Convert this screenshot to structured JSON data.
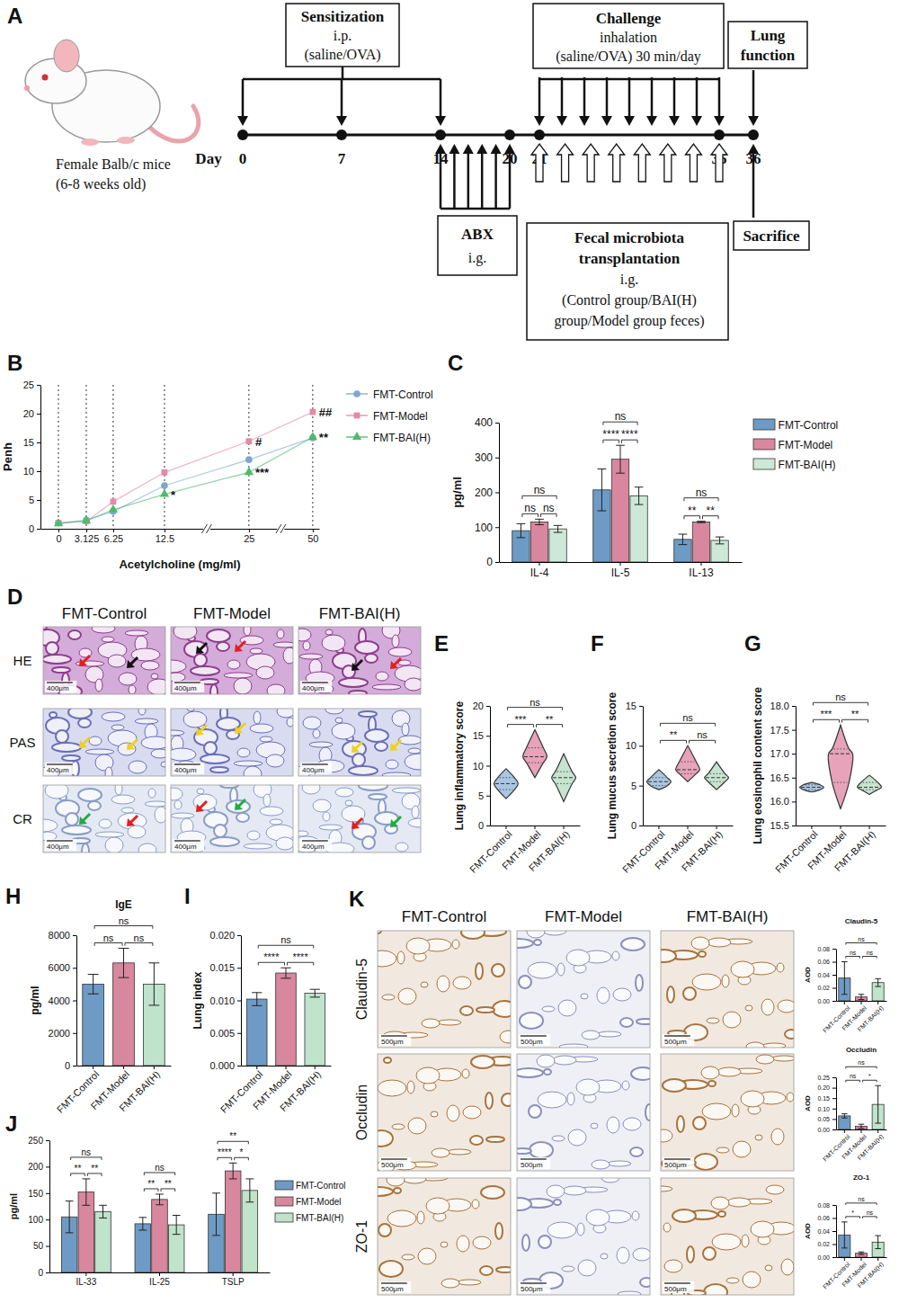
{
  "diagram": {
    "panel": "A",
    "subject": [
      "Female Balb/c mice",
      "(6-8 weeks old)"
    ],
    "day_label": "Day",
    "days": [
      0,
      7,
      14,
      20,
      21,
      35,
      36
    ],
    "sensitization": [
      "Sensitization",
      "i.p.",
      "(saline/OVA)"
    ],
    "challenge": [
      "Challenge",
      "inhalation",
      "(saline/OVA) 30 min/day"
    ],
    "lung_function": [
      "Lung",
      "function"
    ],
    "abx": [
      "ABX",
      "i.g."
    ],
    "fmt": [
      "Fecal microbiota",
      "transplantation",
      "i.g.",
      "(Control group/BAI(H)",
      "group/Model group feces)"
    ],
    "sacrifice": [
      "Sacrifice"
    ]
  },
  "image_panels": [
    {
      "panel": "D",
      "columns": [
        "FMT-Control",
        "FMT-Model",
        "FMT-BAI(H)"
      ],
      "rows": [
        "HE",
        "PAS",
        "CR"
      ],
      "scale_bar": "400μm"
    },
    {
      "panel": "K",
      "columns": [
        "FMT-Control",
        "FMT-Model",
        "FMT-BAI(H)"
      ],
      "rows": [
        "Claudin-5",
        "Occludin",
        "ZO-1"
      ],
      "scale_bar": "500μm"
    }
  ],
  "chart_data": [
    {
      "panel": "B",
      "type": "line",
      "x_label": "Acetylcholine (mg/ml)",
      "y_label": "Penh",
      "x": [
        0,
        3.125,
        6.25,
        12.5,
        25,
        50
      ],
      "xlim": [
        -3,
        52
      ],
      "xticks": [
        0,
        3.125,
        6.25,
        12.5,
        25,
        50
      ],
      "ylim": [
        0,
        25
      ],
      "yticks": [
        0,
        5,
        10,
        15,
        20,
        25
      ],
      "grid": true,
      "legend": "right",
      "series": [
        {
          "name": "FMT-Control",
          "color": "#7fa8cf",
          "marker": "circle",
          "values": [
            1.0,
            1.5,
            3.0,
            7.5,
            12.0,
            15.8
          ]
        },
        {
          "name": "FMT-Model",
          "color": "#e38aa8",
          "marker": "square",
          "values": [
            1.0,
            1.3,
            4.7,
            9.8,
            15.2,
            20.3
          ]
        },
        {
          "name": "FMT-BAI(H)",
          "color": "#4cbb6c",
          "marker": "triangle",
          "values": [
            0.9,
            1.4,
            3.3,
            6.0,
            9.8,
            15.9
          ]
        }
      ],
      "annotations": [
        {
          "text": "*",
          "x": 12.5,
          "y": 6.0
        },
        {
          "text": "#",
          "x": 25,
          "y": 15.2
        },
        {
          "text": "***",
          "x": 25,
          "y": 9.8
        },
        {
          "text": "##",
          "x": 50,
          "y": 20.3
        },
        {
          "text": "**",
          "x": 50,
          "y": 15.9
        }
      ]
    },
    {
      "panel": "C",
      "type": "bar",
      "y_label": "pg/ml",
      "categories": [
        "IL-4",
        "IL-5",
        "IL-13"
      ],
      "ylim": [
        0,
        400
      ],
      "yticks": [
        0,
        100,
        200,
        300,
        400
      ],
      "legend": "right",
      "series": [
        {
          "name": "FMT-Control",
          "color": "#6e9bc5",
          "values": [
            90,
            207,
            65
          ],
          "errors": [
            20,
            60,
            15
          ]
        },
        {
          "name": "FMT-Model",
          "color": "#d9879f",
          "values": [
            115,
            295,
            115
          ],
          "errors": [
            8,
            40,
            2
          ]
        },
        {
          "name": "FMT-BAI(H)",
          "color": "#cde8d6",
          "values": [
            95,
            190,
            62
          ],
          "errors": [
            10,
            25,
            10
          ]
        }
      ],
      "comparisons": [
        {
          "group": 0,
          "pair": [
            0,
            1
          ],
          "label": "ns"
        },
        {
          "group": 0,
          "pair": [
            1,
            2
          ],
          "label": "ns"
        },
        {
          "group": 0,
          "pair": [
            0,
            2
          ],
          "label": "ns"
        },
        {
          "group": 1,
          "pair": [
            0,
            1
          ],
          "label": "****"
        },
        {
          "group": 1,
          "pair": [
            1,
            2
          ],
          "label": "****"
        },
        {
          "group": 1,
          "pair": [
            0,
            2
          ],
          "label": "ns"
        },
        {
          "group": 2,
          "pair": [
            0,
            1
          ],
          "label": "**"
        },
        {
          "group": 2,
          "pair": [
            1,
            2
          ],
          "label": "**"
        },
        {
          "group": 2,
          "pair": [
            0,
            2
          ],
          "label": "ns"
        }
      ]
    },
    {
      "panel": "E",
      "type": "violin",
      "y_label": "Lung inflammatory score",
      "categories": [
        "FMT-Control",
        "FMT-Model",
        "FMT-BAI(H)"
      ],
      "colors": [
        "#a9c6e2",
        "#e6a3ba",
        "#c6e4cf"
      ],
      "ylim": [
        0,
        20
      ],
      "yticks": [
        0,
        5,
        10,
        15,
        20
      ],
      "min": [
        4.5,
        8,
        4
      ],
      "q1": [
        6,
        10.5,
        7
      ],
      "median": [
        7,
        11.5,
        8
      ],
      "q3": [
        8,
        13,
        9
      ],
      "max": [
        9.5,
        16,
        12
      ],
      "comparisons": [
        {
          "pair": [
            0,
            1
          ],
          "label": "***"
        },
        {
          "pair": [
            1,
            2
          ],
          "label": "**"
        },
        {
          "pair": [
            0,
            2
          ],
          "label": "ns"
        }
      ]
    },
    {
      "panel": "F",
      "type": "violin",
      "y_label": "Lung mucus secretion score",
      "categories": [
        "FMT-Control",
        "FMT-Model",
        "FMT-BAI(H)"
      ],
      "colors": [
        "#a9c6e2",
        "#e6a3ba",
        "#c6e4cf"
      ],
      "ylim": [
        0,
        15
      ],
      "yticks": [
        0,
        5,
        10,
        15
      ],
      "min": [
        4.5,
        5.5,
        4.5
      ],
      "q1": [
        5,
        6.5,
        5.5
      ],
      "median": [
        5.5,
        7,
        6
      ],
      "q3": [
        6,
        8,
        6.5
      ],
      "max": [
        7,
        10,
        8
      ],
      "comparisons": [
        {
          "pair": [
            0,
            1
          ],
          "label": "**"
        },
        {
          "pair": [
            1,
            2
          ],
          "label": "ns"
        },
        {
          "pair": [
            0,
            2
          ],
          "label": "ns"
        }
      ]
    },
    {
      "panel": "G",
      "type": "violin",
      "y_label": "Lung eosinophil content score",
      "categories": [
        "FMT-Control",
        "FMT-Model",
        "FMT-BAI(H)"
      ],
      "colors": [
        "#a9c6e2",
        "#e6a3ba",
        "#c6e4cf"
      ],
      "ylim": [
        15.5,
        18
      ],
      "yticks": [
        15.5,
        {
          "value": 16,
          "label": "16.0"
        },
        16.5,
        {
          "value": 17,
          "label": "17.0"
        },
        17.5,
        {
          "value": 18,
          "label": "18.0"
        }
      ],
      "min": [
        16.2,
        15.85,
        16.15
      ],
      "q1": [
        16.25,
        16.4,
        16.25
      ],
      "median": [
        16.3,
        17.0,
        16.3
      ],
      "q3": [
        16.35,
        17.1,
        16.4
      ],
      "max": [
        16.4,
        17.6,
        16.55
      ],
      "comparisons": [
        {
          "pair": [
            0,
            1
          ],
          "label": "***"
        },
        {
          "pair": [
            1,
            2
          ],
          "label": "**"
        },
        {
          "pair": [
            0,
            2
          ],
          "label": "ns"
        }
      ]
    },
    {
      "panel": "H",
      "type": "bar",
      "title": "IgE",
      "y_label": "pg/ml",
      "categories": [
        "FMT-Control",
        "FMT-Model",
        "FMT-BAI(H)"
      ],
      "colors": [
        "#6e9bc5",
        "#d9879f",
        "#bfe3cb"
      ],
      "values": [
        5000,
        6300,
        5000
      ],
      "errors": [
        600,
        900,
        1300
      ],
      "ylim": [
        0,
        8000
      ],
      "yticks": [
        0,
        2000,
        4000,
        6000,
        8000
      ],
      "comparisons": [
        {
          "pair": [
            0,
            1
          ],
          "label": "ns"
        },
        {
          "pair": [
            1,
            2
          ],
          "label": "ns"
        },
        {
          "pair": [
            0,
            2
          ],
          "label": "ns"
        }
      ]
    },
    {
      "panel": "I",
      "type": "bar",
      "y_label": "Lung index",
      "categories": [
        "FMT-Control",
        "FMT-Model",
        "FMT-BAI(H)"
      ],
      "colors": [
        "#6e9bc5",
        "#d9879f",
        "#bfe3cb"
      ],
      "values": [
        0.0102,
        0.0142,
        0.0111
      ],
      "errors": [
        0.001,
        0.0008,
        0.0006
      ],
      "ylim": [
        0,
        0.02
      ],
      "yticks": [
        {
          "value": 0,
          "label": "0.000"
        },
        0.005,
        {
          "value": 0.01,
          "label": "0.010"
        },
        0.015,
        {
          "value": 0.02,
          "label": "0.020"
        }
      ],
      "comparisons": [
        {
          "pair": [
            0,
            1
          ],
          "label": "****"
        },
        {
          "pair": [
            1,
            2
          ],
          "label": "****"
        },
        {
          "pair": [
            0,
            2
          ],
          "label": "ns"
        }
      ]
    },
    {
      "panel": "J",
      "type": "bar",
      "y_label": "pg/ml",
      "categories": [
        "IL-33",
        "IL-25",
        "TSLP"
      ],
      "ylim": [
        0,
        250
      ],
      "yticks": [
        0,
        50,
        100,
        150,
        200,
        250
      ],
      "legend": "right",
      "series": [
        {
          "name": "FMT-Control",
          "color": "#6e9bc5",
          "values": [
            105,
            92,
            110
          ],
          "errors": [
            30,
            12,
            40
          ]
        },
        {
          "name": "FMT-Model",
          "color": "#d9879f",
          "values": [
            152,
            138,
            192
          ],
          "errors": [
            25,
            10,
            15
          ]
        },
        {
          "name": "FMT-BAI(H)",
          "color": "#bfe3cb",
          "values": [
            115,
            90,
            155
          ],
          "errors": [
            12,
            18,
            22
          ]
        }
      ],
      "comparisons": [
        {
          "group": 0,
          "pair": [
            0,
            1
          ],
          "label": "**"
        },
        {
          "group": 0,
          "pair": [
            1,
            2
          ],
          "label": "**"
        },
        {
          "group": 0,
          "pair": [
            0,
            2
          ],
          "label": "ns"
        },
        {
          "group": 1,
          "pair": [
            0,
            1
          ],
          "label": "**"
        },
        {
          "group": 1,
          "pair": [
            1,
            2
          ],
          "label": "**"
        },
        {
          "group": 1,
          "pair": [
            0,
            2
          ],
          "label": "ns"
        },
        {
          "group": 2,
          "pair": [
            0,
            1
          ],
          "label": "****"
        },
        {
          "group": 2,
          "pair": [
            1,
            2
          ],
          "label": "*"
        },
        {
          "group": 2,
          "pair": [
            0,
            2
          ],
          "label": "**"
        }
      ]
    },
    {
      "type": "bar",
      "title": "Claudin-5",
      "y_label": "AOD",
      "categories": [
        "FMT-Control",
        "FMT-Model",
        "FMT-BAI(H)"
      ],
      "colors": [
        "#6e9bc5",
        "#d9879f",
        "#bfe3cb"
      ],
      "values": [
        0.035,
        0.006,
        0.028
      ],
      "errors": [
        0.025,
        0.004,
        0.006
      ],
      "ylim": [
        0,
        0.08
      ],
      "yticks": [
        {
          "value": 0,
          "label": "0.00"
        },
        0.02,
        0.04,
        0.06,
        0.08
      ],
      "comparisons": [
        {
          "pair": [
            0,
            1
          ],
          "label": "ns"
        },
        {
          "pair": [
            1,
            2
          ],
          "label": "ns"
        },
        {
          "pair": [
            0,
            2
          ],
          "label": "ns"
        }
      ]
    },
    {
      "type": "bar",
      "title": "Occludin",
      "y_label": "AOD",
      "categories": [
        "FMT-Control",
        "FMT-Model",
        "FMT-BAI(H)"
      ],
      "colors": [
        "#6e9bc5",
        "#d9879f",
        "#bfe3cb"
      ],
      "values": [
        0.065,
        0.015,
        0.12
      ],
      "errors": [
        0.01,
        0.01,
        0.09
      ],
      "ylim": [
        0,
        0.25
      ],
      "yticks": [
        {
          "value": 0,
          "label": "0.00"
        },
        0.05,
        {
          "value": 0.1,
          "label": "0.10"
        },
        0.15,
        {
          "value": 0.2,
          "label": "0.20"
        },
        0.25
      ],
      "comparisons": [
        {
          "pair": [
            0,
            1
          ],
          "label": "ns"
        },
        {
          "pair": [
            1,
            2
          ],
          "label": "*"
        },
        {
          "pair": [
            0,
            2
          ],
          "label": "ns"
        }
      ]
    },
    {
      "type": "bar",
      "title": "ZO-1",
      "y_label": "AOD",
      "categories": [
        "FMT-Control",
        "FMT-Model",
        "FMT-BAI(H)"
      ],
      "colors": [
        "#6e9bc5",
        "#d9879f",
        "#bfe3cb"
      ],
      "values": [
        0.034,
        0.006,
        0.023
      ],
      "errors": [
        0.02,
        0.002,
        0.01
      ],
      "ylim": [
        0,
        0.08
      ],
      "yticks": [
        {
          "value": 0,
          "label": "0.00"
        },
        0.02,
        0.04,
        0.06,
        0.08
      ],
      "comparisons": [
        {
          "pair": [
            0,
            1
          ],
          "label": "*"
        },
        {
          "pair": [
            1,
            2
          ],
          "label": "ns"
        },
        {
          "pair": [
            0,
            2
          ],
          "label": "ns"
        }
      ]
    }
  ]
}
